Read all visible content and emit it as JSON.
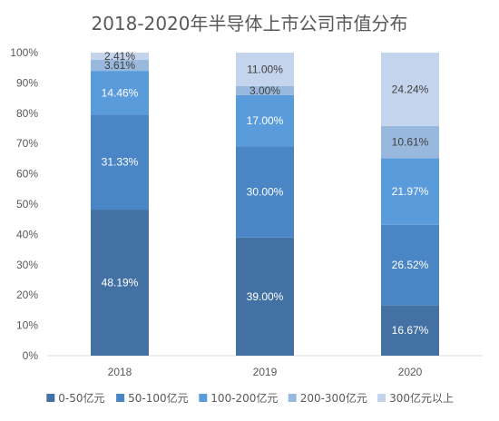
{
  "chart_data": {
    "type": "bar",
    "stacked": true,
    "title": "2018-2020年半导体上市公司市值分布",
    "categories": [
      "2018",
      "2019",
      "2020"
    ],
    "series": [
      {
        "name": "0-50亿元",
        "values": [
          48.19,
          39.0,
          16.67
        ],
        "labels": [
          "48.19%",
          "39.00%",
          "16.67%"
        ],
        "color": "#4471A3",
        "label_color": "#ffffff"
      },
      {
        "name": "50-100亿元",
        "values": [
          31.33,
          30.0,
          26.52
        ],
        "labels": [
          "31.33%",
          "30.00%",
          "26.52%"
        ],
        "color": "#4A86C5",
        "label_color": "#ffffff"
      },
      {
        "name": "100-200亿元",
        "values": [
          14.46,
          17.0,
          21.97
        ],
        "labels": [
          "14.46%",
          "17.00%",
          "21.97%"
        ],
        "color": "#5A9BDB",
        "label_color": "#ffffff"
      },
      {
        "name": "200-300亿元",
        "values": [
          3.61,
          3.0,
          10.61
        ],
        "labels": [
          "3.61%",
          "3.00%",
          "10.61%"
        ],
        "color": "#98B8DE",
        "label_color": "#404040"
      },
      {
        "name": "300亿元以上",
        "values": [
          2.41,
          11.0,
          24.24
        ],
        "labels": [
          "2.41%",
          "11.00%",
          "24.24%"
        ],
        "color": "#C4D4EC",
        "label_color": "#404040"
      }
    ],
    "y_ticks": [
      "0%",
      "10%",
      "20%",
      "30%",
      "40%",
      "50%",
      "60%",
      "70%",
      "80%",
      "90%",
      "100%"
    ],
    "ylim": [
      0,
      100
    ],
    "grid": false,
    "legend_position": "bottom"
  }
}
